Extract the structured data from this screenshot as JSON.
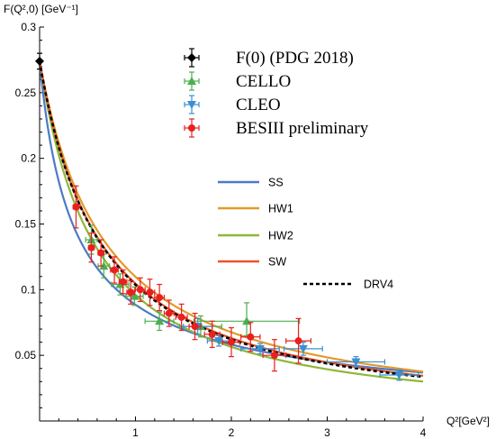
{
  "chart_data": {
    "type": "scatter",
    "title": "",
    "ylabel": "F(Q²,0) [GeV⁻¹]",
    "xlabel": "Q²[GeV²]",
    "xlim": [
      0,
      4
    ],
    "ylim": [
      0.0,
      0.3
    ],
    "xticks": [
      "1",
      "2",
      "3",
      "4"
    ],
    "yticks": [
      "0.05",
      "0.1",
      "0.15",
      "0.2",
      "0.25",
      "0.3"
    ],
    "xtick_values": [
      1,
      2,
      3,
      4
    ],
    "ytick_values": [
      0.05,
      0.1,
      0.15,
      0.2,
      0.25,
      0.3
    ],
    "grid": false,
    "legend_position": "top-right",
    "data_series": [
      {
        "name": "F(0) (PDG 2018)",
        "marker": "diamond",
        "color": "#000000",
        "points": [
          {
            "x": 0.0,
            "y": 0.274,
            "ylo": 0.006,
            "yhi": 0.006,
            "xerr": 0
          }
        ]
      },
      {
        "name": "CELLO",
        "marker": "triangle-up",
        "color": "#4bae4f",
        "points": [
          {
            "x": 0.54,
            "y": 0.138,
            "ylo": 0.011,
            "yhi": 0.011,
            "xerr": 0.06
          },
          {
            "x": 0.67,
            "y": 0.118,
            "ylo": 0.009,
            "yhi": 0.009,
            "xerr": 0.06
          },
          {
            "x": 0.84,
            "y": 0.104,
            "ylo": 0.008,
            "yhi": 0.008,
            "xerr": 0.09
          },
          {
            "x": 0.99,
            "y": 0.095,
            "ylo": 0.007,
            "yhi": 0.007,
            "xerr": 0.09
          },
          {
            "x": 1.25,
            "y": 0.076,
            "ylo": 0.007,
            "yhi": 0.007,
            "xerr": 0.15
          },
          {
            "x": 1.68,
            "y": 0.072,
            "ylo": 0.008,
            "yhi": 0.008,
            "xerr": 0.22
          },
          {
            "x": 2.16,
            "y": 0.076,
            "ylo": 0.011,
            "yhi": 0.014,
            "xerr": 0.55
          }
        ]
      },
      {
        "name": "CLEO",
        "marker": "triangle-down",
        "color": "#3b8fd1",
        "points": [
          {
            "x": 1.65,
            "y": 0.072,
            "ylo": 0.006,
            "yhi": 0.006,
            "xerr": 0.15
          },
          {
            "x": 1.87,
            "y": 0.061,
            "ylo": 0.004,
            "yhi": 0.004,
            "xerr": 0.12
          },
          {
            "x": 2.3,
            "y": 0.055,
            "ylo": 0.004,
            "yhi": 0.004,
            "xerr": 0.2
          },
          {
            "x": 2.75,
            "y": 0.055,
            "ylo": 0.005,
            "yhi": 0.005,
            "xerr": 0.2
          },
          {
            "x": 3.3,
            "y": 0.045,
            "ylo": 0.004,
            "yhi": 0.004,
            "xerr": 0.3
          },
          {
            "x": 3.75,
            "y": 0.035,
            "ylo": 0.004,
            "yhi": 0.004,
            "xerr": 0.2
          }
        ]
      },
      {
        "name": "BESIII preliminary",
        "marker": "circle",
        "color": "#e8201e",
        "points": [
          {
            "x": 0.38,
            "y": 0.163,
            "ylo": 0.016,
            "yhi": 0.016,
            "xerr": 0.03
          },
          {
            "x": 0.54,
            "y": 0.132,
            "ylo": 0.011,
            "yhi": 0.011,
            "xerr": 0.03
          },
          {
            "x": 0.64,
            "y": 0.128,
            "ylo": 0.01,
            "yhi": 0.01,
            "xerr": 0.03
          },
          {
            "x": 0.78,
            "y": 0.115,
            "ylo": 0.01,
            "yhi": 0.01,
            "xerr": 0.04
          },
          {
            "x": 0.87,
            "y": 0.106,
            "ylo": 0.009,
            "yhi": 0.009,
            "xerr": 0.04
          },
          {
            "x": 0.95,
            "y": 0.098,
            "ylo": 0.009,
            "yhi": 0.009,
            "xerr": 0.04
          },
          {
            "x": 1.05,
            "y": 0.1,
            "ylo": 0.009,
            "yhi": 0.009,
            "xerr": 0.05
          },
          {
            "x": 1.15,
            "y": 0.098,
            "ylo": 0.01,
            "yhi": 0.01,
            "xerr": 0.05
          },
          {
            "x": 1.25,
            "y": 0.094,
            "ylo": 0.01,
            "yhi": 0.01,
            "xerr": 0.05
          },
          {
            "x": 1.35,
            "y": 0.082,
            "ylo": 0.01,
            "yhi": 0.01,
            "xerr": 0.05
          },
          {
            "x": 1.48,
            "y": 0.079,
            "ylo": 0.01,
            "yhi": 0.01,
            "xerr": 0.06
          },
          {
            "x": 1.62,
            "y": 0.072,
            "ylo": 0.01,
            "yhi": 0.01,
            "xerr": 0.06
          },
          {
            "x": 1.8,
            "y": 0.066,
            "ylo": 0.01,
            "yhi": 0.01,
            "xerr": 0.08
          },
          {
            "x": 2.0,
            "y": 0.06,
            "ylo": 0.011,
            "yhi": 0.011,
            "xerr": 0.09
          },
          {
            "x": 2.2,
            "y": 0.064,
            "ylo": 0.011,
            "yhi": 0.011,
            "xerr": 0.1
          },
          {
            "x": 2.45,
            "y": 0.05,
            "ylo": 0.012,
            "yhi": 0.012,
            "xerr": 0.12
          },
          {
            "x": 2.7,
            "y": 0.061,
            "ylo": 0.017,
            "yhi": 0.017,
            "xerr": 0.13
          }
        ]
      }
    ],
    "curves": [
      {
        "name": "SS",
        "color": "#4e79c6",
        "style": "solid",
        "x0": 0.0,
        "y0": 0.274,
        "k": 3.8,
        "p": 0.72
      },
      {
        "name": "HW1",
        "color": "#e39a2b",
        "style": "solid",
        "x0": 0.0,
        "y0": 0.274,
        "k": 1.35,
        "p": 1.07
      },
      {
        "name": "HW2",
        "color": "#8fb73a",
        "style": "solid",
        "x0": 0.0,
        "y0": 0.274,
        "k": 1.55,
        "p": 1.12
      },
      {
        "name": "SW",
        "color": "#e9552a",
        "style": "solid",
        "x0": 0.0,
        "y0": 0.274,
        "k": 1.4,
        "p": 1.1
      },
      {
        "name": "DRV4",
        "color": "#000000",
        "style": "dashed",
        "x0": 0.0,
        "y0": 0.274,
        "k": 1.38,
        "p": 1.12
      }
    ],
    "legend_upper": [
      "F(0) (PDG 2018)",
      "CELLO",
      "CLEO",
      "BESIII preliminary"
    ],
    "legend_lower": [
      "SS",
      "HW1",
      "HW2",
      "SW",
      "DRV4"
    ]
  }
}
